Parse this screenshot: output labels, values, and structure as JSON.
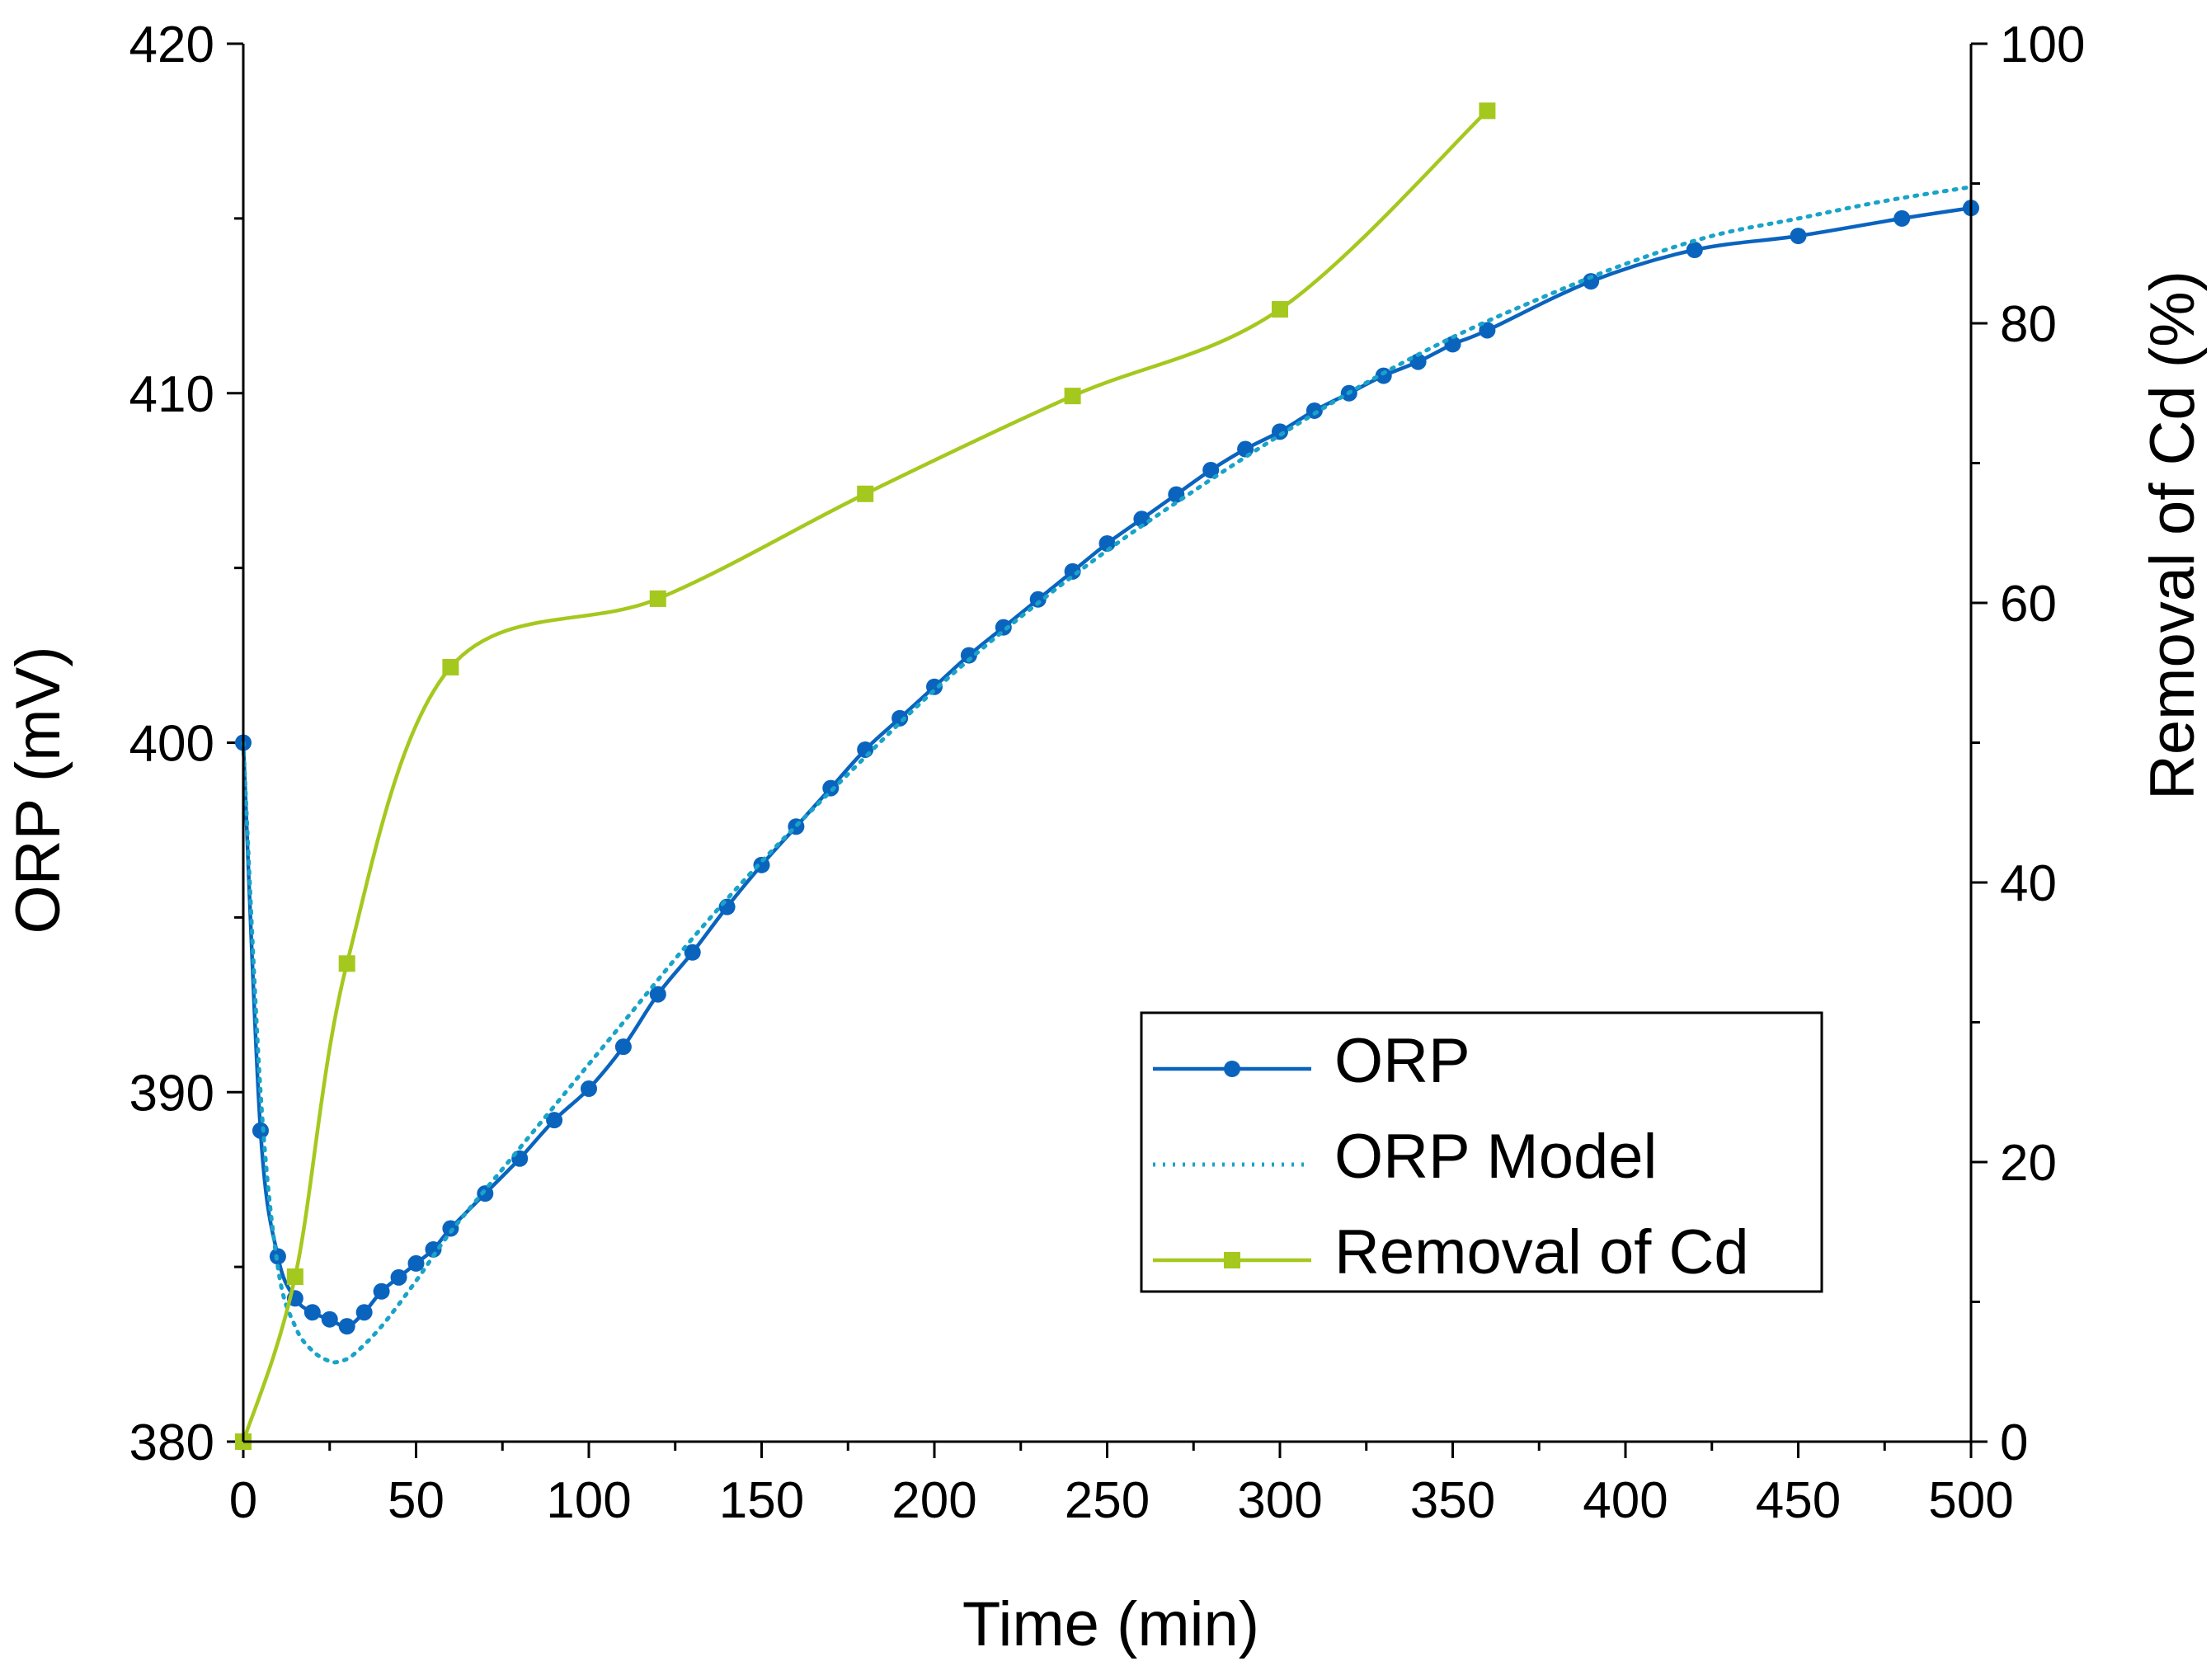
{
  "chart_data": {
    "type": "line",
    "title": "",
    "xlabel": "Time (min)",
    "ylabel": "ORP (mV)",
    "y2label": "Removal of Cd (%)",
    "xlim": [
      0,
      500
    ],
    "ylim": [
      380,
      420
    ],
    "y2lim": [
      0,
      100
    ],
    "x_ticks": [
      0,
      50,
      100,
      150,
      200,
      250,
      300,
      350,
      400,
      450,
      500
    ],
    "y_ticks": [
      380,
      390,
      400,
      410,
      420
    ],
    "y2_ticks": [
      0,
      20,
      40,
      60,
      80,
      100
    ],
    "grid": false,
    "legend_position": "lower-right",
    "series": [
      {
        "name": "ORP",
        "axis": "left",
        "style": "solid-line-circle-markers",
        "color": "#0a64be",
        "x": [
          0,
          5,
          10,
          15,
          20,
          25,
          30,
          35,
          40,
          45,
          50,
          55,
          60,
          70,
          80,
          90,
          100,
          110,
          120,
          130,
          140,
          150,
          160,
          170,
          180,
          190,
          200,
          210,
          220,
          230,
          240,
          250,
          260,
          270,
          280,
          290,
          300,
          310,
          320,
          330,
          340,
          350,
          360,
          390,
          420,
          450,
          480,
          500
        ],
        "values": [
          400.0,
          388.9,
          385.3,
          384.1,
          383.7,
          383.5,
          383.3,
          383.7,
          384.3,
          384.7,
          385.1,
          385.5,
          386.1,
          387.1,
          388.1,
          389.2,
          390.1,
          391.3,
          392.8,
          394.0,
          395.3,
          396.5,
          397.6,
          398.7,
          399.8,
          400.7,
          401.6,
          402.5,
          403.3,
          404.1,
          404.9,
          405.7,
          406.4,
          407.1,
          407.8,
          408.4,
          408.9,
          409.5,
          410.0,
          410.5,
          410.9,
          411.4,
          411.8,
          413.2,
          414.1,
          414.5,
          415.0,
          415.3
        ]
      },
      {
        "name": "ORP Model",
        "axis": "left",
        "style": "dotted-line",
        "color": "#1aa3c8",
        "x": [
          0,
          5,
          10,
          15,
          20,
          25,
          28,
          32,
          40,
          50,
          60,
          75,
          90,
          110,
          130,
          150,
          175,
          200,
          225,
          250,
          275,
          300,
          325,
          350,
          375,
          400,
          425,
          450,
          475,
          500
        ],
        "values": [
          400.0,
          390.0,
          385.0,
          383.3,
          382.6,
          382.3,
          382.3,
          382.5,
          383.3,
          384.6,
          386.0,
          387.8,
          389.6,
          392.0,
          394.4,
          396.6,
          399.1,
          401.5,
          403.6,
          405.5,
          407.2,
          408.8,
          410.3,
          411.6,
          412.7,
          413.7,
          414.5,
          415.0,
          415.5,
          415.9
        ]
      },
      {
        "name": "Removal of Cd",
        "axis": "right",
        "style": "solid-line-square-markers",
        "color": "#a5c81e",
        "x": [
          0,
          15,
          30,
          60,
          120,
          180,
          240,
          300,
          360
        ],
        "values": [
          0,
          11.8,
          34.2,
          55.4,
          60.3,
          67.8,
          74.8,
          81.0,
          95.2
        ]
      }
    ]
  }
}
